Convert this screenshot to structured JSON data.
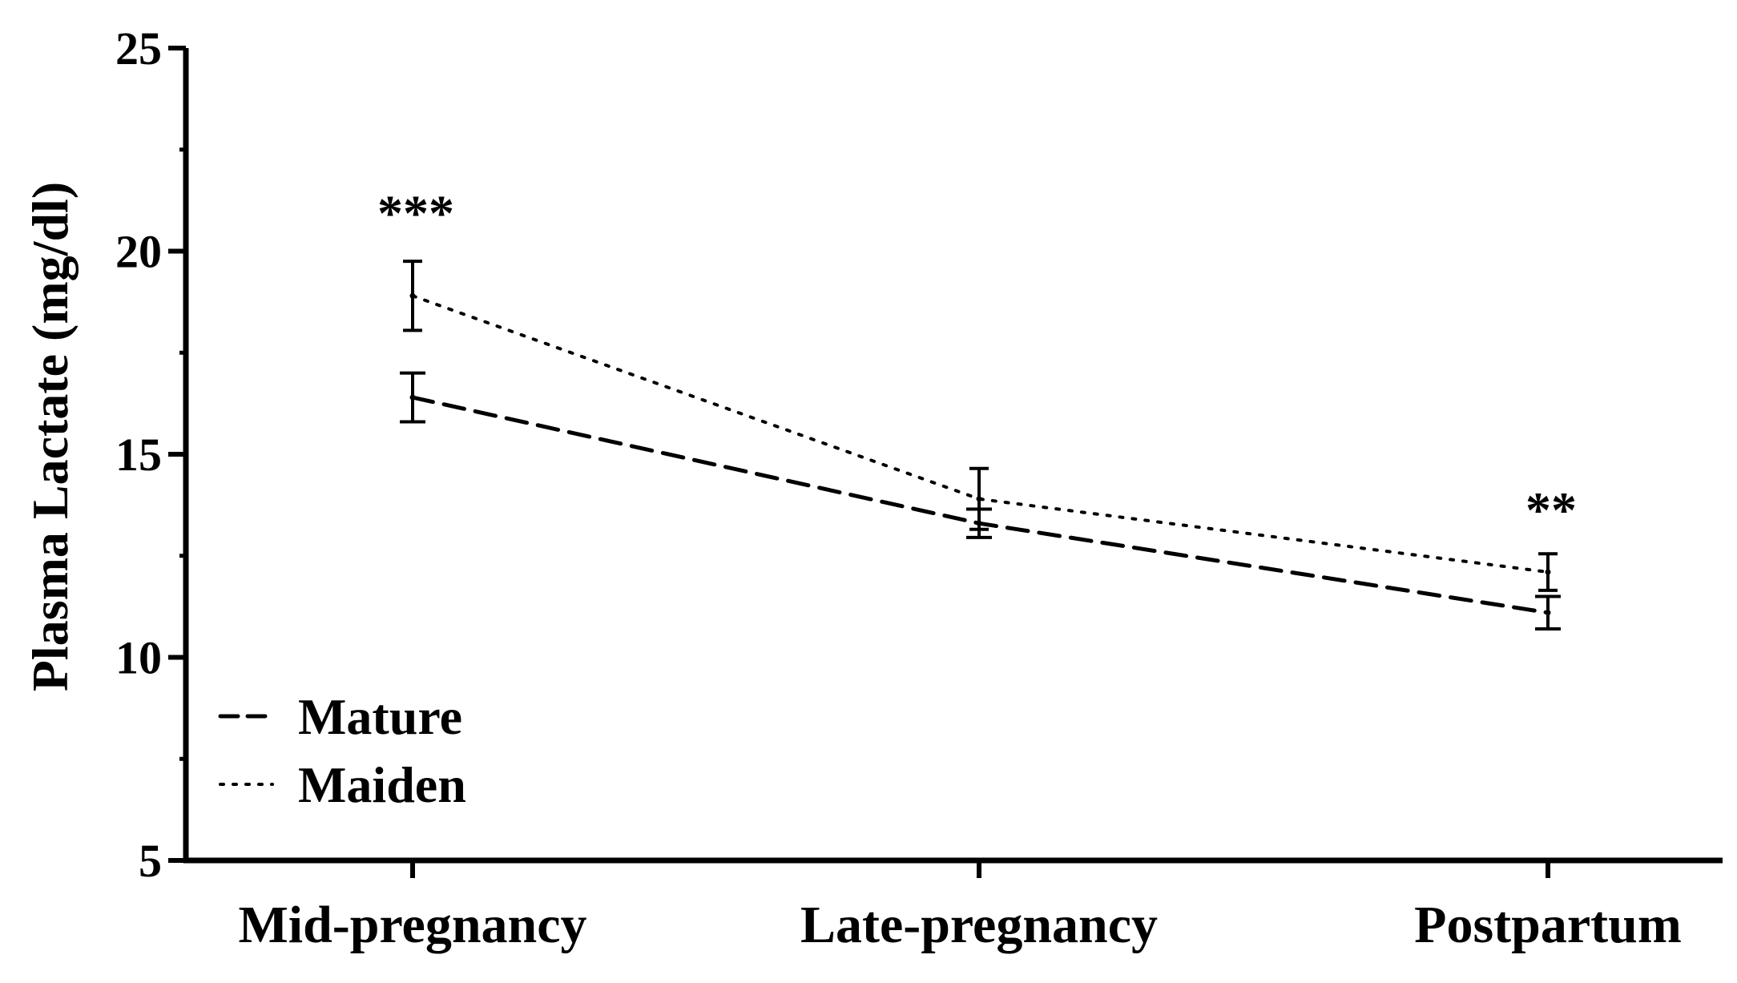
{
  "chart_data": {
    "type": "line",
    "title": "",
    "xlabel": "",
    "ylabel": "Plasma Lactate (mg/dl)",
    "categories": [
      "Mid-pregnancy",
      "Late-pregnancy",
      "Postpartum"
    ],
    "ylim": [
      5,
      25
    ],
    "yticks": [
      5,
      10,
      15,
      20,
      25
    ],
    "ytick_labels": [
      "5",
      "10",
      "15",
      "20",
      "25"
    ],
    "grid": false,
    "legend_position": "bottom-left",
    "series": [
      {
        "name": "Mature",
        "style": "dashed",
        "color": "#000000",
        "values": [
          16.4,
          13.3,
          11.1
        ],
        "error": [
          0.6,
          0.35,
          0.4
        ]
      },
      {
        "name": "Maiden",
        "style": "dotted",
        "color": "#000000",
        "values": [
          18.9,
          13.9,
          12.1
        ],
        "error": [
          0.85,
          0.75,
          0.45
        ]
      }
    ],
    "annotations": [
      {
        "category": "Mid-pregnancy",
        "text": "***",
        "y": 21.1
      },
      {
        "category": "Postpartum",
        "text": "**",
        "y": 13.8
      }
    ]
  }
}
